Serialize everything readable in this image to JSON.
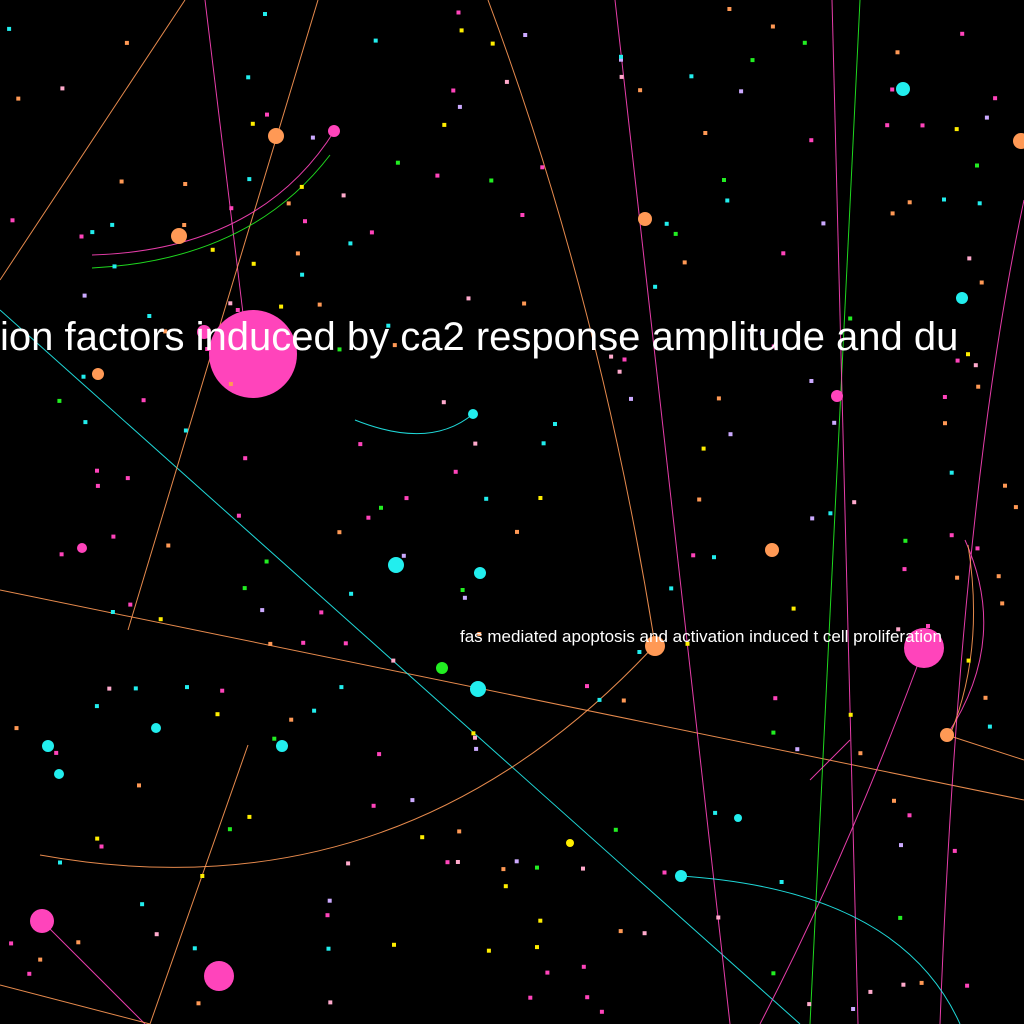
{
  "graph": {
    "labels": {
      "main": "ion factors induced by ca2 response amplitude and du",
      "secondary": "fas mediated apoptosis and activation induced t cell proliferation"
    },
    "colors": {
      "background": "#000000",
      "pink": "#ff44bb",
      "orange": "#ff9955",
      "cyan": "#22eeee",
      "green": "#22ee22",
      "yellow": "#ffee00",
      "lightpink": "#ffaacc",
      "lavender": "#ccaaff"
    }
  }
}
